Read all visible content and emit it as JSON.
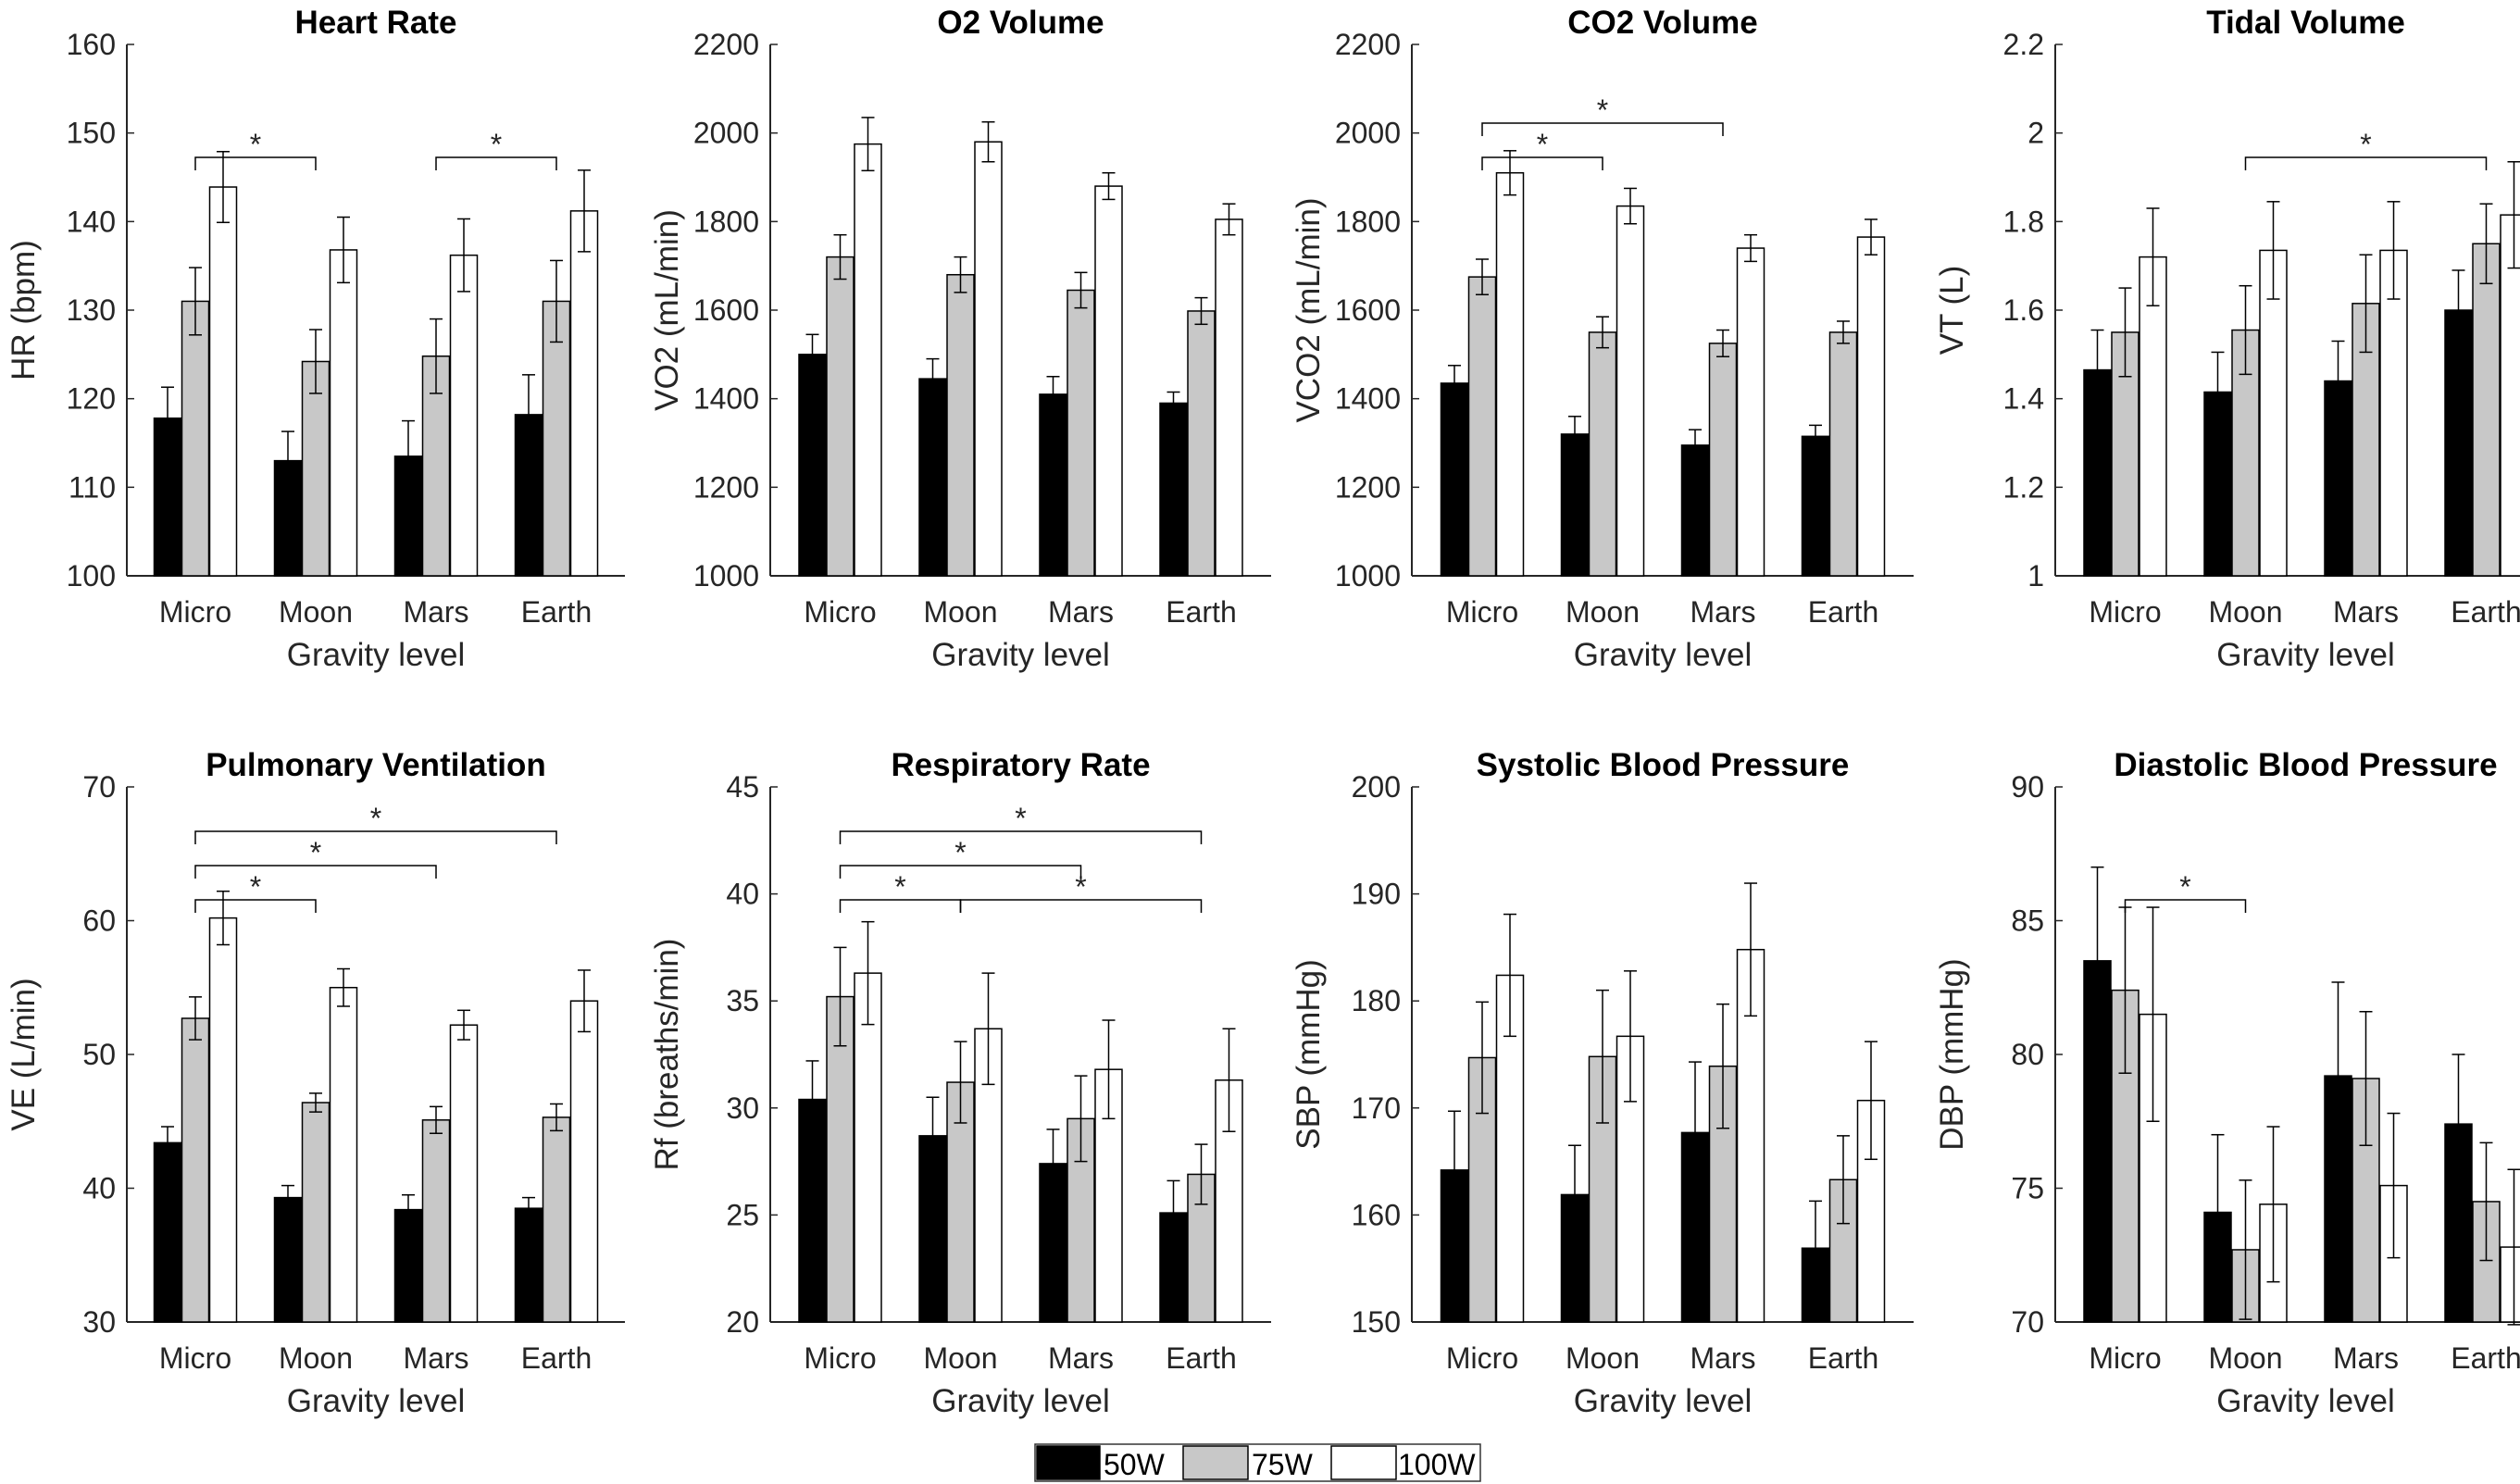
{
  "figure": {
    "legend": [
      {
        "label": "50W",
        "color": "#000000"
      },
      {
        "label": "75W",
        "color": "#c8c8c8"
      },
      {
        "label": "100W",
        "color": "#ffffff"
      }
    ]
  },
  "chart_data": [
    {
      "type": "bar",
      "title": "Heart Rate",
      "xlabel": "Gravity level",
      "ylabel": "HR (bpm)",
      "categories": [
        "Micro",
        "Moon",
        "Mars",
        "Earth"
      ],
      "ylim": [
        100,
        160
      ],
      "yticks": [
        "100",
        "110",
        "120",
        "130",
        "140",
        "150",
        "160"
      ],
      "series": [
        {
          "name": "50W",
          "values": [
            117.8,
            113.0,
            113.5,
            118.2
          ],
          "errors": [
            3.5,
            3.3,
            4.0,
            4.5
          ]
        },
        {
          "name": "75W",
          "values": [
            131.0,
            124.2,
            124.8,
            131.0
          ],
          "errors": [
            3.8,
            3.6,
            4.2,
            4.6
          ]
        },
        {
          "name": "100W",
          "values": [
            143.9,
            136.8,
            136.2,
            141.2
          ],
          "errors": [
            4.0,
            3.7,
            4.1,
            4.6
          ]
        }
      ],
      "significance": [
        {
          "from": "Micro",
          "to": "Moon",
          "level": 1,
          "label": "*"
        },
        {
          "from": "Mars",
          "to": "Earth",
          "level": 1,
          "label": "*"
        }
      ]
    },
    {
      "type": "bar",
      "title": "O2 Volume",
      "xlabel": "Gravity level",
      "ylabel": "VO2 (mL/min)",
      "categories": [
        "Micro",
        "Moon",
        "Mars",
        "Earth"
      ],
      "ylim": [
        1000,
        2200
      ],
      "yticks": [
        "1000",
        "1200",
        "1400",
        "1600",
        "1800",
        "2000",
        "2200"
      ],
      "series": [
        {
          "name": "50W",
          "values": [
            1500,
            1445,
            1410,
            1390
          ],
          "errors": [
            45,
            45,
            40,
            25
          ]
        },
        {
          "name": "75W",
          "values": [
            1720,
            1680,
            1645,
            1598
          ],
          "errors": [
            50,
            40,
            40,
            30
          ]
        },
        {
          "name": "100W",
          "values": [
            1975,
            1980,
            1880,
            1805
          ],
          "errors": [
            60,
            45,
            30,
            35
          ]
        }
      ],
      "significance": []
    },
    {
      "type": "bar",
      "title": "CO2 Volume",
      "xlabel": "Gravity level",
      "ylabel": "VCO2 (mL/min)",
      "categories": [
        "Micro",
        "Moon",
        "Mars",
        "Earth"
      ],
      "ylim": [
        1000,
        2200
      ],
      "yticks": [
        "1000",
        "1200",
        "1400",
        "1600",
        "1800",
        "2000",
        "2200"
      ],
      "series": [
        {
          "name": "50W",
          "values": [
            1435,
            1320,
            1295,
            1315
          ],
          "errors": [
            40,
            40,
            35,
            25
          ]
        },
        {
          "name": "75W",
          "values": [
            1675,
            1550,
            1525,
            1550
          ],
          "errors": [
            40,
            35,
            30,
            25
          ]
        },
        {
          "name": "100W",
          "values": [
            1910,
            1835,
            1740,
            1765
          ],
          "errors": [
            50,
            40,
            30,
            40
          ]
        }
      ],
      "significance": [
        {
          "from": "Micro",
          "to": "Moon",
          "level": 1,
          "label": "*"
        },
        {
          "from": "Micro",
          "to": "Mars",
          "level": 2,
          "label": "*"
        }
      ]
    },
    {
      "type": "bar",
      "title": "Tidal Volume",
      "xlabel": "Gravity level",
      "ylabel": "VT (L)",
      "categories": [
        "Micro",
        "Moon",
        "Mars",
        "Earth"
      ],
      "ylim": [
        1,
        2.2
      ],
      "yticks": [
        "1",
        "1.2",
        "1.4",
        "1.6",
        "1.8",
        "2",
        "2.2"
      ],
      "series": [
        {
          "name": "50W",
          "values": [
            1.465,
            1.415,
            1.44,
            1.6
          ],
          "errors": [
            0.09,
            0.09,
            0.09,
            0.09
          ]
        },
        {
          "name": "75W",
          "values": [
            1.55,
            1.555,
            1.615,
            1.75
          ],
          "errors": [
            0.1,
            0.1,
            0.11,
            0.09
          ]
        },
        {
          "name": "100W",
          "values": [
            1.72,
            1.735,
            1.735,
            1.815
          ],
          "errors": [
            0.11,
            0.11,
            0.11,
            0.12
          ]
        }
      ],
      "significance": [
        {
          "from": "Moon",
          "to": "Earth",
          "level": 1,
          "label": "*"
        }
      ]
    },
    {
      "type": "bar",
      "title": "Pulmonary Ventilation",
      "xlabel": "Gravity level",
      "ylabel": "VE (L/min)",
      "categories": [
        "Micro",
        "Moon",
        "Mars",
        "Earth"
      ],
      "ylim": [
        30,
        70
      ],
      "yticks": [
        "30",
        "40",
        "50",
        "60",
        "70"
      ],
      "series": [
        {
          "name": "50W",
          "values": [
            43.4,
            39.3,
            38.4,
            38.5
          ],
          "errors": [
            1.2,
            0.9,
            1.1,
            0.8
          ]
        },
        {
          "name": "75W",
          "values": [
            52.7,
            46.4,
            45.1,
            45.3
          ],
          "errors": [
            1.6,
            0.7,
            1.0,
            1.0
          ]
        },
        {
          "name": "100W",
          "values": [
            60.2,
            55.0,
            52.2,
            54.0
          ],
          "errors": [
            2.0,
            1.4,
            1.1,
            2.3
          ]
        }
      ],
      "significance": [
        {
          "from": "Micro",
          "to": "Moon",
          "level": 1,
          "label": "*"
        },
        {
          "from": "Micro",
          "to": "Mars",
          "level": 2,
          "label": "*"
        },
        {
          "from": "Micro",
          "to": "Earth",
          "level": 3,
          "label": "*"
        }
      ]
    },
    {
      "type": "bar",
      "title": "Respiratory Rate",
      "xlabel": "Gravity level",
      "ylabel": "Rf (breaths/min)",
      "categories": [
        "Micro",
        "Moon",
        "Mars",
        "Earth"
      ],
      "ylim": [
        20,
        45
      ],
      "yticks": [
        "20",
        "25",
        "30",
        "35",
        "40",
        "45"
      ],
      "series": [
        {
          "name": "50W",
          "values": [
            30.4,
            28.7,
            27.4,
            25.1
          ],
          "errors": [
            1.8,
            1.8,
            1.6,
            1.5
          ]
        },
        {
          "name": "75W",
          "values": [
            35.2,
            31.2,
            29.5,
            26.9
          ],
          "errors": [
            2.3,
            1.9,
            2.0,
            1.4
          ]
        },
        {
          "name": "100W",
          "values": [
            36.3,
            33.7,
            31.8,
            31.3
          ],
          "errors": [
            2.4,
            2.6,
            2.3,
            2.4
          ]
        }
      ],
      "significance": [
        {
          "from": "Micro",
          "to": "Moon",
          "level": 1,
          "label": "*"
        },
        {
          "from": "Moon",
          "to": "Earth",
          "level": 1,
          "label": "*"
        },
        {
          "from": "Micro",
          "to": "Mars",
          "level": 2,
          "label": "*"
        },
        {
          "from": "Micro",
          "to": "Earth",
          "level": 3,
          "label": "*"
        }
      ]
    },
    {
      "type": "bar",
      "title": "Systolic Blood Pressure",
      "xlabel": "Gravity level",
      "ylabel": "SBP (mmHg)",
      "categories": [
        "Micro",
        "Moon",
        "Mars",
        "Earth"
      ],
      "ylim": [
        150,
        200
      ],
      "yticks": [
        "150",
        "160",
        "170",
        "180",
        "190",
        "200"
      ],
      "series": [
        {
          "name": "50W",
          "values": [
            164.2,
            161.9,
            167.7,
            156.9
          ],
          "errors": [
            5.5,
            4.6,
            6.6,
            4.4
          ]
        },
        {
          "name": "75W",
          "values": [
            174.7,
            174.8,
            173.9,
            163.3
          ],
          "errors": [
            5.2,
            6.2,
            5.8,
            4.1
          ]
        },
        {
          "name": "100W",
          "values": [
            182.4,
            176.7,
            184.8,
            170.7
          ],
          "errors": [
            5.7,
            6.1,
            6.2,
            5.5
          ]
        }
      ],
      "significance": []
    },
    {
      "type": "bar",
      "title": "Diastolic Blood Pressure",
      "xlabel": "Gravity level",
      "ylabel": "DBP (mmHg)",
      "categories": [
        "Micro",
        "Moon",
        "Mars",
        "Earth"
      ],
      "ylim": [
        70,
        90
      ],
      "yticks": [
        "70",
        "75",
        "80",
        "85",
        "90"
      ],
      "series": [
        {
          "name": "50W",
          "values": [
            83.5,
            74.1,
            79.2,
            77.4
          ],
          "errors": [
            3.5,
            2.9,
            3.5,
            2.6
          ]
        },
        {
          "name": "75W",
          "values": [
            82.4,
            72.7,
            79.1,
            74.5
          ],
          "errors": [
            3.1,
            2.6,
            2.5,
            2.2
          ]
        },
        {
          "name": "100W",
          "values": [
            81.5,
            74.4,
            75.1,
            72.8
          ],
          "errors": [
            4.0,
            2.9,
            2.7,
            2.9
          ]
        }
      ],
      "significance": [
        {
          "from": "Micro",
          "to": "Moon",
          "level": 1,
          "label": "*"
        }
      ]
    }
  ]
}
